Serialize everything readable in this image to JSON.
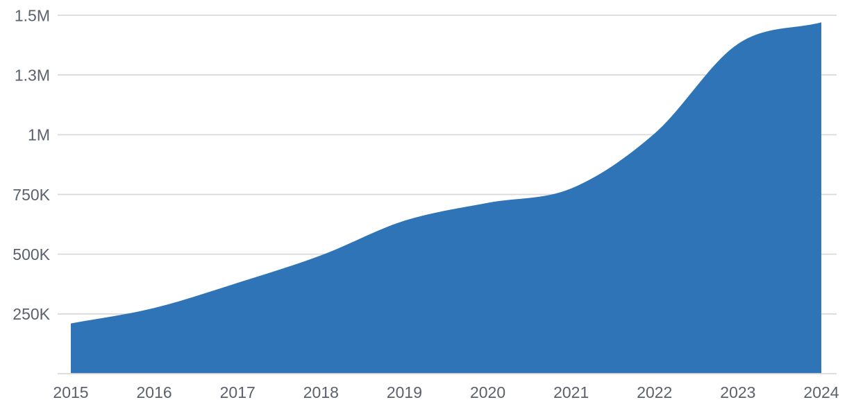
{
  "chart_data": {
    "type": "area",
    "title": "",
    "xlabel": "",
    "ylabel": "",
    "categories": [
      "2015",
      "2016",
      "2017",
      "2018",
      "2019",
      "2020",
      "2021",
      "2022",
      "2023",
      "2024"
    ],
    "series": [
      {
        "name": "",
        "values": [
          210000,
          275000,
          380000,
          495000,
          640000,
          715000,
          775000,
          1005000,
          1380000,
          1470000
        ]
      }
    ],
    "ylim": [
      0,
      1500000
    ],
    "y_ticks": [
      {
        "value": 1500000,
        "label": "1.5M"
      },
      {
        "value": 1250000,
        "label": "1.3M"
      },
      {
        "value": 1000000,
        "label": "1M"
      },
      {
        "value": 750000,
        "label": "750K"
      },
      {
        "value": 500000,
        "label": "500K"
      },
      {
        "value": 250000,
        "label": "250K"
      }
    ],
    "grid": true,
    "legend": "none",
    "colors": {
      "area_fill": "#2F74B6",
      "gridline": "#D9D9D9",
      "axis_line": "#D9D9D9",
      "tick_label": "#5A616C",
      "background": "#FFFFFF"
    }
  }
}
